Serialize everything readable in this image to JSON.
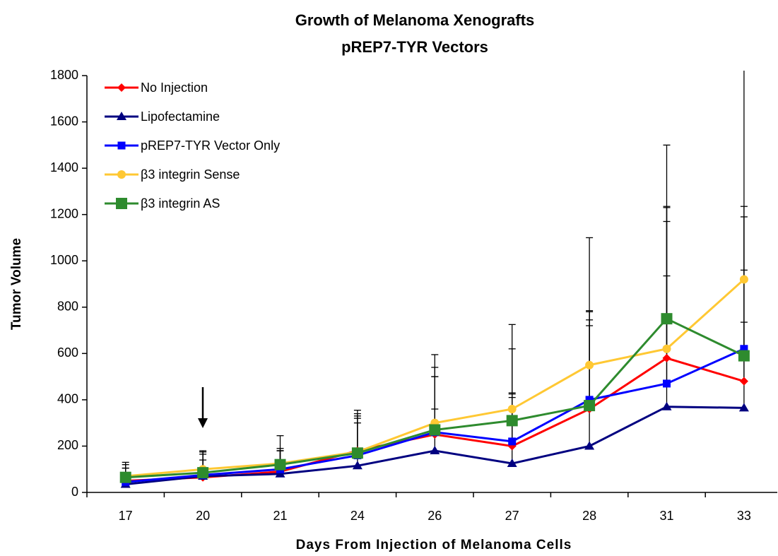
{
  "chart_data": {
    "type": "line",
    "title": "Growth of Melanoma Xenografts",
    "subtitle": "pREP7-TYR Vectors",
    "x_label": "Days From Injection of Melanoma Cells",
    "y_label": "Tumor Volume",
    "categories": [
      "17",
      "20",
      "21",
      "24",
      "26",
      "27",
      "28",
      "31",
      "33"
    ],
    "ylim": [
      0,
      1800
    ],
    "yticks": [
      0,
      200,
      400,
      600,
      800,
      1000,
      1200,
      1400,
      1600,
      1800
    ],
    "legend": "upper left",
    "series": [
      {
        "name": "No Injection",
        "color": "#ff0000",
        "marker": "diamond",
        "values": [
          50,
          65,
          90,
          180,
          250,
          200,
          360,
          580,
          480
        ],
        "errors": [
          80,
          110,
          100,
          120,
          250,
          210,
          360,
          650,
          480
        ]
      },
      {
        "name": "Lipofectamine",
        "color": "#000080",
        "marker": "triangle",
        "values": [
          35,
          70,
          80,
          115,
          180,
          125,
          200,
          370,
          365
        ],
        "errors": [
          40,
          70,
          100,
          240,
          180,
          300,
          580,
          800,
          370
        ]
      },
      {
        "name": "pREP7-TYR Vector Only",
        "color": "#0000ff",
        "marker": "square",
        "values": [
          45,
          75,
          100,
          160,
          260,
          220,
          400,
          470,
          620
        ],
        "errors": [
          60,
          100,
          80,
          170,
          280,
          400,
          700,
          1030,
          570
        ]
      },
      {
        "name": "β3 integrin Sense",
        "color": "#ffc833",
        "marker": "circle",
        "values": [
          70,
          100,
          125,
          175,
          300,
          360,
          550,
          620,
          920
        ],
        "errors": [
          50,
          80,
          120,
          165,
          295,
          365,
          235,
          315,
          1000
        ]
      },
      {
        "name": "β3 integrin AS",
        "color": "#2e8b2e",
        "marker": "bigsquare",
        "values": [
          65,
          85,
          120,
          170,
          270,
          310,
          375,
          750,
          590
        ],
        "errors": [
          40,
          80,
          60,
          150,
          230,
          120,
          370,
          485,
          645
        ]
      }
    ]
  }
}
